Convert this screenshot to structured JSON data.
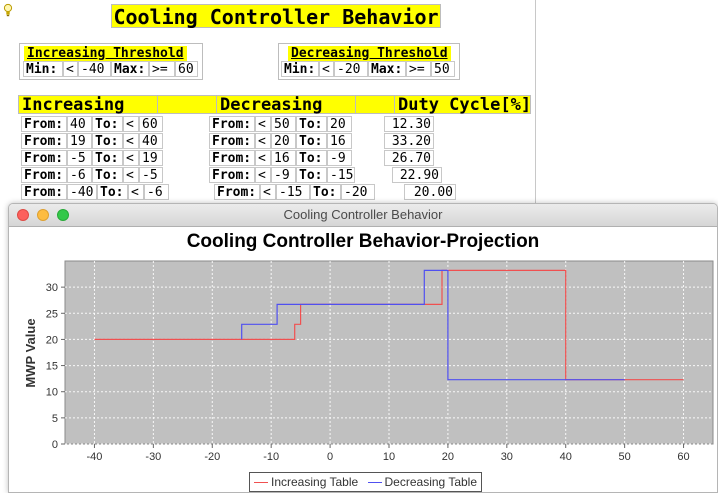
{
  "app": {
    "title": "Cooling Controller Behavior"
  },
  "thresholds": {
    "increasing": {
      "header": "Increasing Threshold",
      "min_label": "Min:",
      "min_op": "<",
      "min_value": "-40",
      "max_label": "Max:",
      "max_op": ">=",
      "max_value": "60"
    },
    "decreasing": {
      "header": "Decreasing Threshold",
      "min_label": "Min:",
      "min_op": "<",
      "min_value": "-20",
      "max_label": "Max:",
      "max_op": ">=",
      "max_value": "50"
    }
  },
  "table": {
    "headers": {
      "increasing": "Increasing",
      "decreasing": "Decreasing",
      "duty": "Duty Cycle[%]"
    },
    "from_label": "From:",
    "to_label": "To:",
    "rows": [
      {
        "inc_from": "40",
        "inc_op": "<",
        "inc_to": "60",
        "dec_op": "<",
        "dec_from": "50",
        "dec_to": "20",
        "duty": "12.30"
      },
      {
        "inc_from": "19",
        "inc_op": "<",
        "inc_to": "40",
        "dec_op": "<",
        "dec_from": "20",
        "dec_to": "16",
        "duty": "33.20"
      },
      {
        "inc_from": "-5",
        "inc_op": "<",
        "inc_to": "19",
        "dec_op": "<",
        "dec_from": "16",
        "dec_to": "-9",
        "duty": "26.70"
      },
      {
        "inc_from": "-6",
        "inc_op": "<",
        "inc_to": "-5",
        "dec_op": "<",
        "dec_from": "-9",
        "dec_to": "-15",
        "duty": "22.90"
      },
      {
        "inc_from": "-40",
        "inc_op": "<",
        "inc_to": "-6",
        "dec_op": "<",
        "dec_from": "-15",
        "dec_to": "-20",
        "duty": "20.00"
      }
    ]
  },
  "chart_window": {
    "title": "Cooling Controller Behavior"
  },
  "chart_data": {
    "type": "line",
    "title": "Cooling Controller Behavior-Projection",
    "xlabel": "",
    "ylabel": "MWP Value",
    "xlim": [
      -45,
      65
    ],
    "ylim": [
      0,
      35
    ],
    "xticks": [
      -40,
      -30,
      -20,
      -10,
      0,
      10,
      20,
      30,
      40,
      50,
      60
    ],
    "yticks": [
      0,
      5,
      10,
      15,
      20,
      25,
      30
    ],
    "grid": true,
    "legend": "bottom-center",
    "series": [
      {
        "name": "Increasing Table",
        "color": "#f05050",
        "points": [
          [
            -40,
            20
          ],
          [
            -6,
            20
          ],
          [
            -6,
            22.9
          ],
          [
            -5,
            22.9
          ],
          [
            -5,
            26.7
          ],
          [
            19,
            26.7
          ],
          [
            19,
            33.2
          ],
          [
            40,
            33.2
          ],
          [
            40,
            12.3
          ],
          [
            60,
            12.3
          ]
        ]
      },
      {
        "name": "Decreasing Table",
        "color": "#5050f0",
        "points": [
          [
            -15,
            20
          ],
          [
            -15,
            22.9
          ],
          [
            -9,
            22.9
          ],
          [
            -9,
            26.7
          ],
          [
            16,
            26.7
          ],
          [
            16,
            33.2
          ],
          [
            20,
            33.2
          ],
          [
            20,
            12.3
          ],
          [
            50,
            12.3
          ]
        ]
      }
    ]
  },
  "colors": {
    "highlight": "#ffff00",
    "plot_bg": "#c0c0c0",
    "close_dot": "#fc605c",
    "minimize_dot": "#fdbc40",
    "maximize_dot": "#34c84a"
  }
}
